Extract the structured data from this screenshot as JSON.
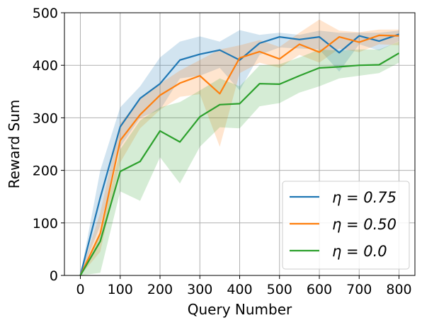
{
  "chart_data": {
    "type": "line",
    "title": "",
    "xlabel": "Query Number",
    "ylabel": "Reward Sum",
    "xlim": [
      -40,
      840
    ],
    "ylim": [
      0,
      500
    ],
    "xticks": [
      0,
      100,
      200,
      300,
      400,
      500,
      600,
      700,
      800
    ],
    "yticks": [
      0,
      100,
      200,
      300,
      400,
      500
    ],
    "grid": true,
    "legend_position": "lower-right",
    "series": [
      {
        "name": "η = 0.75",
        "color": "#1f77b4",
        "x": [
          0,
          50,
          100,
          150,
          200,
          250,
          300,
          350,
          400,
          450,
          500,
          550,
          600,
          650,
          700,
          750,
          800
        ],
        "y": [
          0,
          148,
          283,
          337,
          365,
          410,
          421,
          429,
          410,
          442,
          454,
          449,
          454,
          424,
          456,
          446,
          459
        ],
        "lower": [
          0,
          95,
          245,
          300,
          315,
          375,
          380,
          395,
          352,
          420,
          434,
          432,
          430,
          388,
          440,
          428,
          446
        ],
        "upper": [
          0,
          200,
          320,
          360,
          415,
          445,
          455,
          445,
          467,
          458,
          462,
          458,
          466,
          462,
          462,
          462,
          466
        ]
      },
      {
        "name": "η = 0.50",
        "color": "#ff7f0e",
        "x": [
          0,
          50,
          100,
          150,
          200,
          250,
          300,
          350,
          400,
          450,
          500,
          550,
          600,
          650,
          700,
          750,
          800
        ],
        "y": [
          0,
          80,
          257,
          306,
          343,
          366,
          380,
          346,
          414,
          426,
          412,
          440,
          425,
          454,
          444,
          457,
          456
        ],
        "lower": [
          0,
          45,
          215,
          280,
          315,
          340,
          345,
          245,
          385,
          405,
          395,
          420,
          405,
          432,
          425,
          440,
          438
        ],
        "upper": [
          0,
          120,
          290,
          335,
          365,
          390,
          410,
          430,
          438,
          448,
          435,
          462,
          487,
          466,
          463,
          468,
          468
        ]
      },
      {
        "name": "η = 0.0",
        "color": "#2ca02c",
        "x": [
          0,
          50,
          100,
          150,
          200,
          250,
          300,
          350,
          400,
          450,
          500,
          550,
          600,
          650,
          700,
          750,
          800
        ],
        "y": [
          0,
          65,
          198,
          217,
          275,
          254,
          302,
          325,
          327,
          365,
          364,
          380,
          395,
          397,
          400,
          401,
          423
        ],
        "lower": [
          0,
          5,
          160,
          142,
          225,
          175,
          245,
          282,
          280,
          322,
          328,
          348,
          360,
          375,
          380,
          385,
          405
        ],
        "upper": [
          0,
          80,
          240,
          295,
          320,
          330,
          352,
          375,
          360,
          400,
          402,
          415,
          430,
          428,
          430,
          430,
          445
        ]
      }
    ]
  }
}
